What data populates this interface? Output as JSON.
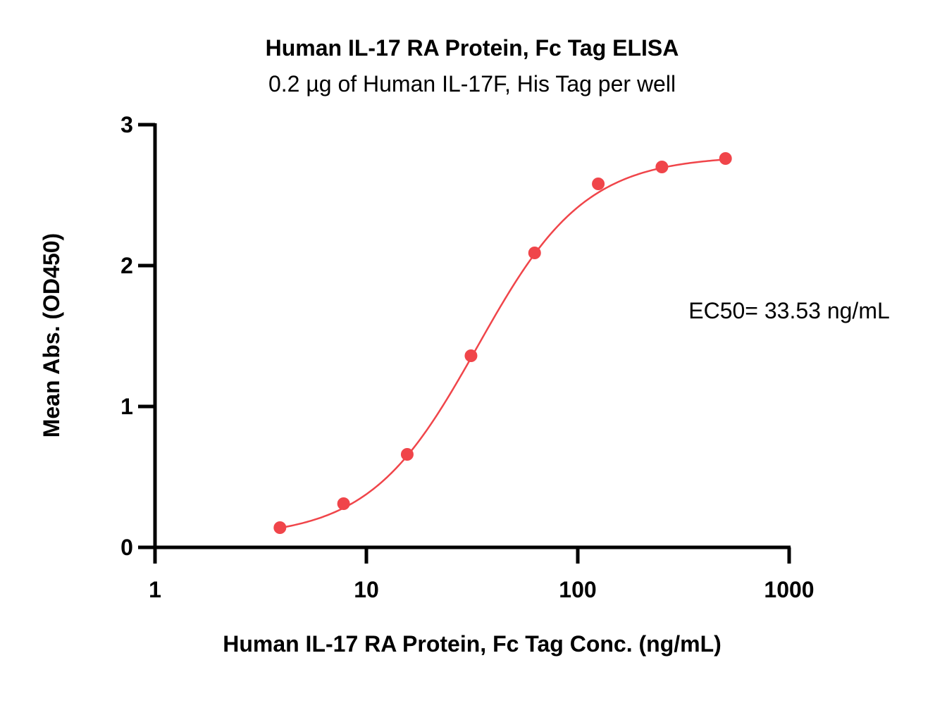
{
  "chart_data": {
    "type": "scatter",
    "title": "Human IL-17 RA Protein, Fc Tag ELISA",
    "subtitle": "0.2 µg of Human IL-17F, His Tag per well",
    "xlabel": "Human IL-17 RA Protein, Fc Tag Conc. (ng/mL)",
    "ylabel": "Mean Abs. (OD450)",
    "x_scale": "log",
    "xlim": [
      1,
      1000
    ],
    "ylim": [
      0,
      3
    ],
    "x_ticks": [
      "1",
      "10",
      "100",
      "1000"
    ],
    "y_ticks": [
      "0",
      "1",
      "2",
      "3"
    ],
    "grid": false,
    "series": [
      {
        "color": "#f0454a",
        "x": [
          3.9,
          7.8,
          15.6,
          31.25,
          62.5,
          125,
          250,
          500
        ],
        "y": [
          0.14,
          0.31,
          0.66,
          1.36,
          2.09,
          2.58,
          2.7,
          2.76
        ],
        "fit": "4PL",
        "fit_params": {
          "bottom": 0.07,
          "top": 2.78,
          "ec50": 33.53,
          "hill": 1.7
        }
      }
    ],
    "annotation": "EC50= 33.53 ng/mL"
  }
}
